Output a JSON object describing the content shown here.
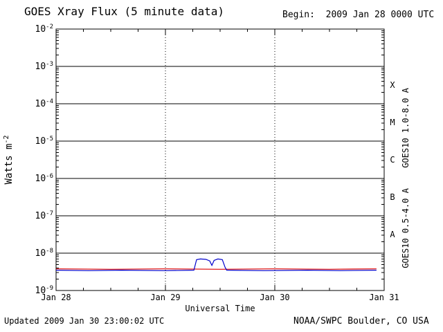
{
  "header": {
    "title": "GOES Xray Flux (5 minute data)",
    "begin_label": "Begin:  2009 Jan 28 0000 UTC"
  },
  "footer": {
    "updated": "Updated 2009 Jan 30 23:00:02 UTC",
    "credit": "NOAA/SWPC Boulder, CO USA"
  },
  "chart_data": {
    "type": "line",
    "title": "GOES Xray Flux (5 minute data)",
    "xlabel": "Universal Time",
    "ylabel": {
      "base": "Watts m",
      "exp": "-2"
    },
    "x_axis": {
      "day_labels": [
        "Jan 28",
        "Jan 29",
        "Jan 30",
        "Jan 31"
      ],
      "range_days": [
        0,
        3
      ],
      "minor_tick_hours": 6
    },
    "y_axis": {
      "scale": "log",
      "exp_min": -9,
      "exp_max": -2,
      "base_label": "10",
      "tick_exponents": [
        -2,
        -3,
        -4,
        -5,
        -6,
        -7,
        -8,
        -9
      ]
    },
    "flare_classes": [
      {
        "label": "X",
        "exp_mid": -3.5
      },
      {
        "label": "M",
        "exp_mid": -4.5
      },
      {
        "label": "C",
        "exp_mid": -5.5
      },
      {
        "label": "B",
        "exp_mid": -6.5
      },
      {
        "label": "A",
        "exp_mid": -7.5
      }
    ],
    "series": [
      {
        "name": "GOES10 1.0-8.0 A",
        "color": "#dd0000",
        "points": [
          [
            0.0,
            3.8e-09
          ],
          [
            0.5,
            3.7e-09
          ],
          [
            1.0,
            3.8e-09
          ],
          [
            1.5,
            3.7e-09
          ],
          [
            2.0,
            3.8e-09
          ],
          [
            2.5,
            3.7e-09
          ],
          [
            2.93,
            3.8e-09
          ]
        ]
      },
      {
        "name": "GOES10 0.5-4.0 A",
        "color": "#0000cc",
        "points": [
          [
            0.0,
            3.5e-09
          ],
          [
            0.3,
            3.4e-09
          ],
          [
            0.6,
            3.5e-09
          ],
          [
            1.0,
            3.4e-09
          ],
          [
            1.26,
            3.5e-09
          ],
          [
            1.285,
            6.7e-09
          ],
          [
            1.32,
            7e-09
          ],
          [
            1.37,
            6.8e-09
          ],
          [
            1.405,
            6.2e-09
          ],
          [
            1.425,
            4.7e-09
          ],
          [
            1.445,
            6.4e-09
          ],
          [
            1.48,
            7e-09
          ],
          [
            1.52,
            6.7e-09
          ],
          [
            1.545,
            4.2e-09
          ],
          [
            1.56,
            3.5e-09
          ],
          [
            1.9,
            3.4e-09
          ],
          [
            2.3,
            3.5e-09
          ],
          [
            2.6,
            3.4e-09
          ],
          [
            2.93,
            3.5e-09
          ]
        ]
      }
    ]
  }
}
